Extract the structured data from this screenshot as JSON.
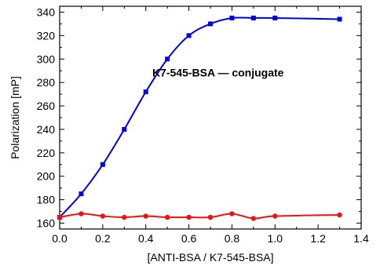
{
  "chart_data": {
    "type": "line",
    "title": "",
    "xlabel": "[ANTI-BSA / K7-545-BSA]",
    "ylabel": "Polarization [mP]",
    "xlim": [
      0.0,
      1.4
    ],
    "ylim": [
      155,
      345
    ],
    "x_ticks": [
      0.0,
      0.2,
      0.4,
      0.6,
      0.8,
      1.0,
      1.2,
      1.4
    ],
    "x_tick_labels": [
      "0.0",
      "0.2",
      "0.4",
      "0.6",
      "0.8",
      "1.0",
      "1.2",
      "1.4"
    ],
    "y_ticks": [
      160,
      180,
      200,
      220,
      240,
      260,
      280,
      300,
      320,
      340
    ],
    "y_tick_labels": [
      "160",
      "180",
      "200",
      "220",
      "240",
      "260",
      "280",
      "300",
      "320",
      "340"
    ],
    "grid": false,
    "legend": "none",
    "annotations": [
      {
        "text": "K7-545-BSA — conjugate",
        "x": 0.43,
        "y": 285
      }
    ],
    "series": [
      {
        "color": "#0000e0",
        "marker": "square",
        "x": [
          0.0,
          0.1,
          0.2,
          0.3,
          0.4,
          0.5,
          0.6,
          0.7,
          0.8,
          0.9,
          1.0,
          1.3
        ],
        "values": [
          165,
          185,
          210,
          240,
          272,
          300,
          320,
          330,
          335,
          335,
          335,
          334
        ]
      },
      {
        "color": "#ee1111",
        "marker": "circle",
        "x": [
          0.0,
          0.1,
          0.2,
          0.3,
          0.4,
          0.5,
          0.6,
          0.7,
          0.8,
          0.9,
          1.0,
          1.3
        ],
        "values": [
          165,
          168,
          166,
          165,
          166,
          165,
          165,
          165,
          168,
          164,
          166,
          167
        ]
      }
    ]
  }
}
